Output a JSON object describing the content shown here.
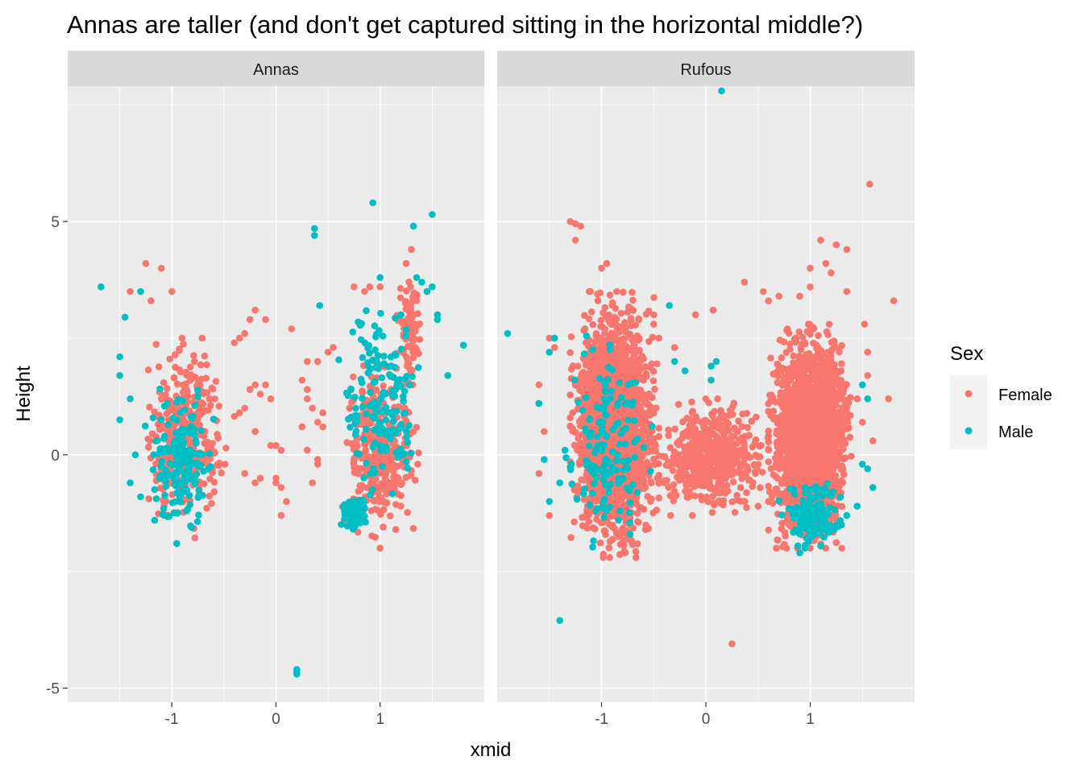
{
  "chart_data": {
    "type": "scatter",
    "title": "Annas are taller (and don't get captured sitting in the horizontal middle?)",
    "xlabel": "xmid",
    "ylabel": "Height",
    "xlim": [
      -2.0,
      2.0
    ],
    "ylim": [
      -5.3,
      7.9
    ],
    "x_ticks": [
      -1,
      0,
      1
    ],
    "x_tick_labels": [
      "-1",
      "0",
      "1"
    ],
    "y_ticks": [
      -5,
      0,
      5
    ],
    "y_tick_labels": [
      "-5",
      "0",
      "5"
    ],
    "grid": true,
    "legend": {
      "title": "Sex",
      "position": "right",
      "entries": [
        {
          "label": "Female",
          "color": "#F8766D"
        },
        {
          "label": "Male",
          "color": "#00BFC4"
        }
      ]
    },
    "panels": [
      {
        "name": "Annas",
        "series": [
          {
            "name": "Female",
            "color": "#F8766D",
            "clusters": [
              {
                "x_range": [
                  -1.3,
                  -0.4
                ],
                "y_range": [
                  -1.8,
                  2.5
                ],
                "approx_points": 350
              },
              {
                "x_range": [
                  0.6,
                  1.4
                ],
                "y_range": [
                  -1.8,
                  2.1
                ],
                "approx_points": 350
              },
              {
                "x_range": [
                  1.15,
                  1.4
                ],
                "y_range": [
                  1.5,
                  3.9
                ],
                "approx_points": 80
              }
            ],
            "points": [
              [
                -1.25,
                4.1
              ],
              [
                -1.1,
                4.0
              ],
              [
                -1.0,
                3.5
              ],
              [
                -1.3,
                3.5
              ],
              [
                -1.4,
                3.5
              ],
              [
                -1.2,
                3.3
              ],
              [
                -0.35,
                2.5
              ],
              [
                -0.3,
                2.6
              ],
              [
                -0.4,
                2.4
              ],
              [
                -0.25,
                2.9
              ],
              [
                -0.2,
                3.1
              ],
              [
                -0.1,
                2.9
              ],
              [
                -0.2,
                1.5
              ],
              [
                -0.15,
                1.3
              ],
              [
                -0.1,
                1.5
              ],
              [
                -0.05,
                1.2
              ],
              [
                -0.25,
                1.4
              ],
              [
                -0.35,
                0.9
              ],
              [
                -0.3,
                1.0
              ],
              [
                -0.2,
                0.5
              ],
              [
                0.0,
                0.2
              ],
              [
                0.05,
                0.1
              ],
              [
                -0.05,
                0.2
              ],
              [
                -0.2,
                0.5
              ],
              [
                -0.3,
                -0.4
              ],
              [
                -0.2,
                -0.6
              ],
              [
                -0.15,
                -0.5
              ],
              [
                0.0,
                -0.6
              ],
              [
                0.05,
                -0.7
              ],
              [
                0.1,
                -1.0
              ],
              [
                0.05,
                -1.3
              ],
              [
                0.0,
                -0.5
              ],
              [
                0.15,
                2.7
              ],
              [
                0.3,
                2.0
              ],
              [
                0.25,
                1.6
              ],
              [
                0.3,
                1.2
              ],
              [
                0.35,
                1.0
              ],
              [
                0.3,
                1.4
              ],
              [
                0.4,
                0.7
              ],
              [
                0.45,
                0.9
              ],
              [
                0.45,
                0.6
              ],
              [
                0.35,
                -0.6
              ],
              [
                0.4,
                -0.2
              ],
              [
                0.3,
                0.1
              ],
              [
                0.4,
                2.0
              ],
              [
                0.5,
                2.2
              ],
              [
                0.55,
                2.3
              ],
              [
                0.25,
                0.6
              ],
              [
                0.4,
                -0.1
              ],
              [
                0.75,
                3.6
              ],
              [
                0.85,
                3.5
              ],
              [
                0.9,
                3.6
              ],
              [
                1.0,
                3.6
              ],
              [
                1.3,
                4.4
              ],
              [
                1.25,
                4.1
              ],
              [
                1.0,
                -2.0
              ],
              [
                1.15,
                -1.6
              ]
            ]
          },
          {
            "name": "Male",
            "color": "#00BFC4",
            "clusters": [
              {
                "x_range": [
                  -1.3,
                  -0.55
                ],
                "y_range": [
                  -1.9,
                  1.5
                ],
                "approx_points": 180
              },
              {
                "x_range": [
                  0.6,
                  0.9
                ],
                "y_range": [
                  -1.6,
                  -0.9
                ],
                "approx_points": 120
              },
              {
                "x_range": [
                  0.6,
                  1.4
                ],
                "y_range": [
                  -1.2,
                  3.5
                ],
                "approx_points": 160
              }
            ],
            "points": [
              [
                -1.68,
                3.6
              ],
              [
                -1.3,
                3.5
              ],
              [
                -1.45,
                2.95
              ],
              [
                -1.5,
                2.1
              ],
              [
                -1.5,
                1.7
              ],
              [
                -1.5,
                0.75
              ],
              [
                -1.4,
                1.2
              ],
              [
                -1.35,
                0.0
              ],
              [
                -1.3,
                -0.9
              ],
              [
                -1.4,
                -0.6
              ],
              [
                0.2,
                -4.6
              ],
              [
                0.2,
                -4.65
              ],
              [
                0.2,
                -4.7
              ],
              [
                0.37,
                4.85
              ],
              [
                0.37,
                4.7
              ],
              [
                0.42,
                3.2
              ],
              [
                0.93,
                5.4
              ],
              [
                1.5,
                5.15
              ],
              [
                1.32,
                4.9
              ],
              [
                1.0,
                3.8
              ],
              [
                1.45,
                3.5
              ],
              [
                1.5,
                3.6
              ],
              [
                1.55,
                3.0
              ],
              [
                1.55,
                2.9
              ],
              [
                1.8,
                2.35
              ],
              [
                1.65,
                1.7
              ],
              [
                1.45,
                3.5
              ],
              [
                1.2,
                3.0
              ],
              [
                1.35,
                3.8
              ],
              [
                1.4,
                3.7
              ]
            ]
          }
        ]
      },
      {
        "name": "Rufous",
        "series": [
          {
            "name": "Female",
            "color": "#F8766D",
            "clusters": [
              {
                "x_range": [
                  -1.3,
                  -0.45
                ],
                "y_range": [
                  -2.2,
                  3.5
                ],
                "approx_points": 2200
              },
              {
                "x_range": [
                  -0.5,
                  0.6
                ],
                "y_range": [
                  -1.3,
                  1.2
                ],
                "approx_points": 500
              },
              {
                "x_range": [
                  0.6,
                  1.4
                ],
                "y_range": [
                  -2.0,
                  2.8
                ],
                "approx_points": 2200
              }
            ],
            "points": [
              [
                -1.3,
                5.0
              ],
              [
                -1.25,
                4.95
              ],
              [
                -1.2,
                4.9
              ],
              [
                -1.25,
                4.6
              ],
              [
                -1.0,
                4.0
              ],
              [
                -0.95,
                4.1
              ],
              [
                -1.5,
                2.5
              ],
              [
                -1.45,
                2.3
              ],
              [
                -1.6,
                1.5
              ],
              [
                -1.55,
                0.5
              ],
              [
                -1.6,
                -0.4
              ],
              [
                -1.5,
                -1.3
              ],
              [
                -0.5,
                3.0
              ],
              [
                -0.45,
                2.5
              ],
              [
                -0.5,
                2.8
              ],
              [
                -0.3,
                2.3
              ],
              [
                -0.1,
                3.0
              ],
              [
                0.07,
                3.1
              ],
              [
                0.37,
                3.7
              ],
              [
                0.55,
                3.5
              ],
              [
                0.6,
                3.3
              ],
              [
                0.7,
                3.4
              ],
              [
                0.9,
                3.4
              ],
              [
                1.0,
                3.6
              ],
              [
                1.0,
                4.0
              ],
              [
                1.1,
                4.6
              ],
              [
                1.15,
                4.1
              ],
              [
                1.2,
                3.9
              ],
              [
                1.25,
                4.5
              ],
              [
                1.35,
                4.4
              ],
              [
                1.35,
                3.5
              ],
              [
                1.52,
                2.8
              ],
              [
                1.55,
                2.2
              ],
              [
                1.55,
                1.7
              ],
              [
                1.45,
                1.2
              ],
              [
                1.5,
                0.7
              ],
              [
                1.6,
                0.3
              ],
              [
                1.57,
                5.8
              ],
              [
                1.75,
                1.2
              ],
              [
                1.8,
                3.3
              ],
              [
                0.25,
                -4.05
              ],
              [
                0.2,
                0.1
              ],
              [
                0.1,
                -0.3
              ],
              [
                0.0,
                -0.6
              ],
              [
                0.5,
                -1.1
              ],
              [
                0.6,
                -1.0
              ]
            ]
          },
          {
            "name": "Male",
            "color": "#00BFC4",
            "clusters": [
              {
                "x_range": [
                  -1.35,
                  -0.5
                ],
                "y_range": [
                  -2.0,
                  3.0
                ],
                "approx_points": 150
              },
              {
                "x_range": [
                  0.7,
                  1.35
                ],
                "y_range": [
                  -2.1,
                  -0.5
                ],
                "approx_points": 150
              }
            ],
            "points": [
              [
                0.15,
                7.8
              ],
              [
                -1.9,
                2.6
              ],
              [
                -1.45,
                2.5
              ],
              [
                -1.5,
                2.2
              ],
              [
                -1.6,
                1.1
              ],
              [
                -1.55,
                -0.1
              ],
              [
                -1.4,
                -3.55
              ],
              [
                -1.5,
                -1.0
              ],
              [
                -1.35,
                0.1
              ],
              [
                -1.4,
                -0.6
              ],
              [
                -0.35,
                3.2
              ],
              [
                0.05,
                1.6
              ],
              [
                0.05,
                1.9
              ],
              [
                0.1,
                2.0
              ],
              [
                -0.2,
                1.8
              ],
              [
                -0.3,
                2.0
              ],
              [
                1.3,
                -1.5
              ],
              [
                1.35,
                -1.3
              ],
              [
                1.45,
                -1.1
              ],
              [
                1.5,
                -0.2
              ],
              [
                1.55,
                -0.3
              ],
              [
                1.6,
                -0.7
              ],
              [
                1.5,
                1.5
              ],
              [
                1.55,
                1.2
              ],
              [
                0.9,
                -2.1
              ],
              [
                0.95,
                -2.0
              ]
            ]
          }
        ]
      }
    ]
  }
}
